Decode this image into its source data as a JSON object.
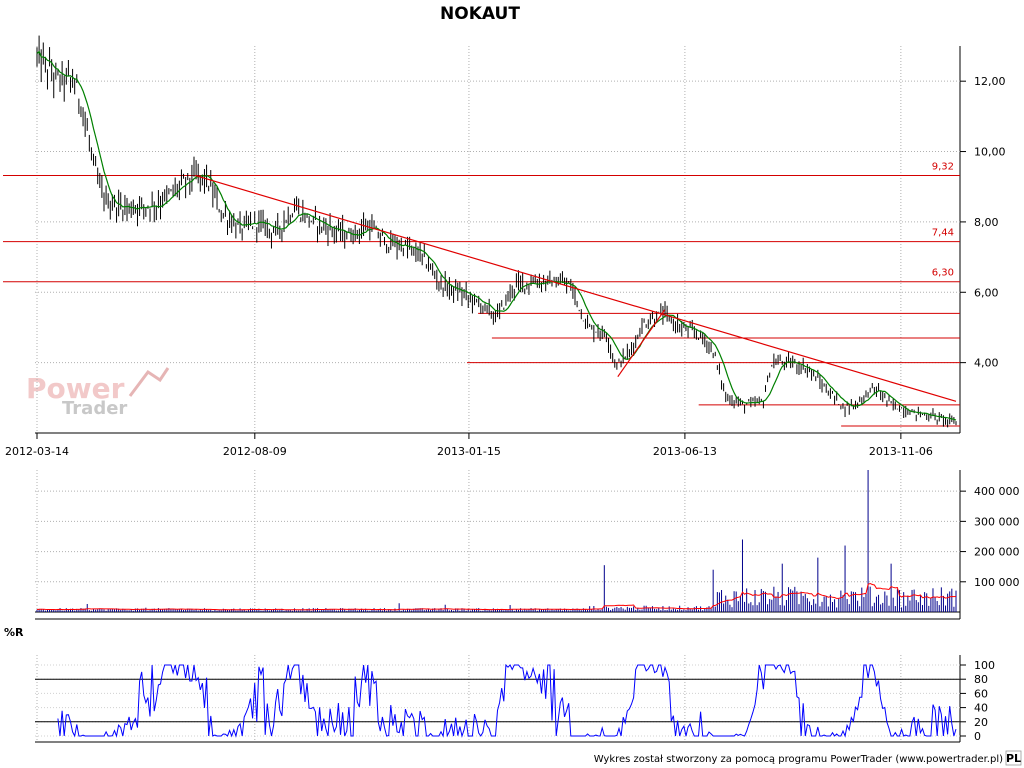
{
  "chart_data": [
    {
      "type": "candlestick",
      "title": "NOKAUT",
      "yticks": [
        "4,00",
        "6,00",
        "8,00",
        "10,00",
        "12,00"
      ],
      "ylim": [
        2.0,
        13.0
      ],
      "xtick_labels": [
        "2012-03-14",
        "2012-08-09",
        "2013-01-15",
        "2013-06-13",
        "2013-11-06"
      ],
      "price_path": [
        [
          0,
          12.7
        ],
        [
          0.02,
          12.1
        ],
        [
          0.04,
          12.0
        ],
        [
          0.05,
          11.2
        ],
        [
          0.06,
          9.8
        ],
        [
          0.07,
          8.8
        ],
        [
          0.08,
          8.5
        ],
        [
          0.1,
          8.4
        ],
        [
          0.13,
          8.5
        ],
        [
          0.15,
          8.9
        ],
        [
          0.17,
          9.3
        ],
        [
          0.185,
          9.2
        ],
        [
          0.2,
          8.3
        ],
        [
          0.22,
          7.8
        ],
        [
          0.24,
          8.0
        ],
        [
          0.26,
          7.7
        ],
        [
          0.28,
          8.4
        ],
        [
          0.3,
          8.0
        ],
        [
          0.32,
          7.8
        ],
        [
          0.34,
          7.6
        ],
        [
          0.36,
          7.9
        ],
        [
          0.38,
          7.4
        ],
        [
          0.4,
          7.3
        ],
        [
          0.42,
          7.0
        ],
        [
          0.44,
          6.2
        ],
        [
          0.46,
          6.0
        ],
        [
          0.48,
          5.7
        ],
        [
          0.5,
          5.3
        ],
        [
          0.52,
          6.2
        ],
        [
          0.54,
          6.3
        ],
        [
          0.56,
          6.3
        ],
        [
          0.58,
          6.2
        ],
        [
          0.6,
          5.0
        ],
        [
          0.62,
          4.8
        ],
        [
          0.63,
          3.9
        ],
        [
          0.645,
          4.3
        ],
        [
          0.66,
          5.1
        ],
        [
          0.68,
          5.4
        ],
        [
          0.7,
          5.0
        ],
        [
          0.72,
          4.8
        ],
        [
          0.735,
          4.4
        ],
        [
          0.75,
          3.0
        ],
        [
          0.77,
          2.8
        ],
        [
          0.79,
          2.9
        ],
        [
          0.8,
          4.0
        ],
        [
          0.82,
          4.0
        ],
        [
          0.84,
          3.8
        ],
        [
          0.86,
          3.2
        ],
        [
          0.88,
          2.7
        ],
        [
          0.895,
          2.9
        ],
        [
          0.91,
          3.3
        ],
        [
          0.93,
          2.8
        ],
        [
          0.95,
          2.6
        ],
        [
          0.97,
          2.5
        ],
        [
          1.0,
          2.3
        ]
      ],
      "horizontal_levels": [
        {
          "label": "9,32",
          "value": 9.32
        },
        {
          "label": "7,44",
          "value": 7.44
        },
        {
          "label": "6,30",
          "value": 6.3
        },
        {
          "label": "",
          "value": 5.4
        },
        {
          "label": "",
          "value": 4.7
        },
        {
          "label": "",
          "value": 4.0
        },
        {
          "label": "",
          "value": 2.8
        },
        {
          "label": "",
          "value": 2.2
        }
      ],
      "trendlines": [
        {
          "from": [
            0.172,
            9.32
          ],
          "to": [
            1.0,
            2.9
          ]
        },
        {
          "from": [
            0.632,
            3.6
          ],
          "to": [
            0.683,
            5.5
          ]
        }
      ],
      "colors": {
        "candles": "#000000",
        "moving_average": "#008000",
        "levels": "#d40000",
        "trendline": "#e00000"
      }
    },
    {
      "type": "bar",
      "yticks": [
        "100 000",
        "200 000",
        "300 000",
        "400 000"
      ],
      "ylim": [
        0,
        470000
      ],
      "spikes": [
        [
          0.618,
          155000
        ],
        [
          0.735,
          140000
        ],
        [
          0.768,
          240000
        ],
        [
          0.81,
          160000
        ],
        [
          0.85,
          180000
        ],
        [
          0.88,
          220000
        ],
        [
          0.905,
          470000
        ],
        [
          0.93,
          160000
        ]
      ],
      "colors": {
        "bars": "#00008b",
        "average": "#ff0000"
      }
    },
    {
      "type": "line",
      "title": "%R",
      "yticks": [
        "0",
        "20",
        "40",
        "60",
        "80",
        "100"
      ],
      "ylim": [
        0,
        100
      ],
      "reference_lines": [
        20,
        80
      ],
      "colors": {
        "line": "#0000ff"
      }
    }
  ],
  "watermark": {
    "line1": "Power",
    "line2": "Trader"
  },
  "footer": "Wykres został stworzony za pomocą programu PowerTrader (www.powertrader.pl)",
  "logo_text": "PL"
}
